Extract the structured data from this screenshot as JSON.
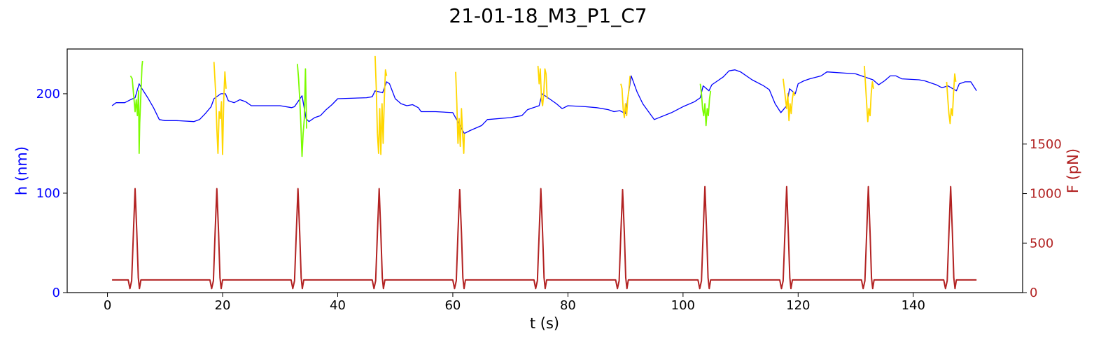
{
  "chart_data": {
    "type": "line",
    "title": "21-01-18_M3_P1_C7",
    "xlabel": "t (s)",
    "ylabel_left": "h (nm)",
    "ylabel_right": "F (pN)",
    "xlim": [
      -7,
      159
    ],
    "ylim_left": [
      0,
      245
    ],
    "ylim_right": [
      0,
      2460
    ],
    "x_ticks": [
      0,
      20,
      40,
      60,
      80,
      100,
      120,
      140
    ],
    "y_left_ticks": [
      0,
      100,
      200
    ],
    "y_right_ticks": [
      0,
      500,
      1000,
      1500
    ],
    "colors": {
      "height": "#0000ff",
      "force": "#b22222",
      "approach_segment": "#7cfc00",
      "retract_segment": "#ffd700",
      "left_axis_text": "#0000ff",
      "right_axis_text": "#b22222"
    },
    "grid": false,
    "series": [
      {
        "axis": "left",
        "color": "#0000ff",
        "points": [
          [
            0.8,
            188
          ],
          [
            1.5,
            191
          ],
          [
            3,
            191
          ],
          [
            4,
            194
          ],
          [
            4.8,
            196
          ],
          [
            5.5,
            210
          ],
          [
            6,
            205
          ],
          [
            7,
            196
          ],
          [
            8,
            186
          ],
          [
            9,
            174
          ],
          [
            10,
            173
          ],
          [
            12,
            173
          ],
          [
            15,
            172
          ],
          [
            16,
            174
          ],
          [
            17,
            180
          ],
          [
            18,
            187
          ],
          [
            18.5,
            195
          ],
          [
            19.7,
            200
          ],
          [
            20.5,
            200
          ],
          [
            21,
            193
          ],
          [
            22,
            191
          ],
          [
            23,
            194
          ],
          [
            24,
            192
          ],
          [
            25,
            188
          ],
          [
            28,
            188
          ],
          [
            30,
            188
          ],
          [
            32,
            186
          ],
          [
            32.5,
            187
          ],
          [
            33.8,
            198
          ],
          [
            34.5,
            175
          ],
          [
            35,
            172
          ],
          [
            36,
            176
          ],
          [
            37,
            178
          ],
          [
            38,
            184
          ],
          [
            39,
            189
          ],
          [
            40,
            195
          ],
          [
            45,
            196
          ],
          [
            46,
            197
          ],
          [
            46.5,
            203
          ],
          [
            47.8,
            201
          ],
          [
            48.5,
            212
          ],
          [
            49,
            210
          ],
          [
            50,
            195
          ],
          [
            51,
            190
          ],
          [
            52,
            188
          ],
          [
            53,
            189
          ],
          [
            54,
            186
          ],
          [
            54.5,
            182
          ],
          [
            57,
            182
          ],
          [
            60,
            181
          ],
          [
            62,
            160
          ],
          [
            63,
            163
          ],
          [
            65,
            168
          ],
          [
            66,
            174
          ],
          [
            70,
            176
          ],
          [
            72,
            178
          ],
          [
            73,
            184
          ],
          [
            74,
            186
          ],
          [
            75,
            188
          ],
          [
            75.5,
            200
          ],
          [
            77,
            194
          ],
          [
            78,
            190
          ],
          [
            79,
            185
          ],
          [
            80,
            188
          ],
          [
            83,
            187
          ],
          [
            85,
            186
          ],
          [
            87,
            184
          ],
          [
            88,
            182
          ],
          [
            89,
            183
          ],
          [
            90,
            180
          ],
          [
            91,
            218
          ],
          [
            92,
            202
          ],
          [
            93,
            190
          ],
          [
            94,
            182
          ],
          [
            95,
            174
          ],
          [
            98,
            181
          ],
          [
            100,
            187
          ],
          [
            102,
            192
          ],
          [
            103,
            196
          ],
          [
            103.5,
            208
          ],
          [
            104.5,
            203
          ],
          [
            105,
            209
          ],
          [
            106,
            213
          ],
          [
            107,
            217
          ],
          [
            108,
            223
          ],
          [
            109,
            224
          ],
          [
            110,
            222
          ],
          [
            112,
            214
          ],
          [
            114,
            208
          ],
          [
            115,
            204
          ],
          [
            116,
            190
          ],
          [
            117,
            181
          ],
          [
            118,
            188
          ],
          [
            118.5,
            205
          ],
          [
            119.5,
            200
          ],
          [
            120,
            210
          ],
          [
            121,
            213
          ],
          [
            122,
            215
          ],
          [
            124,
            218
          ],
          [
            125,
            222
          ],
          [
            130,
            220
          ],
          [
            131,
            218
          ],
          [
            133,
            214
          ],
          [
            134,
            209
          ],
          [
            135,
            213
          ],
          [
            136,
            218
          ],
          [
            137,
            218
          ],
          [
            138,
            215
          ],
          [
            141,
            214
          ],
          [
            142,
            213
          ],
          [
            144,
            209
          ],
          [
            145,
            206
          ],
          [
            146,
            208
          ],
          [
            147.5,
            203
          ],
          [
            148,
            210
          ],
          [
            149,
            212
          ],
          [
            150,
            212
          ],
          [
            151,
            203
          ]
        ]
      },
      {
        "axis": "left",
        "color": "#7cfc00",
        "points": [
          [
            4.0,
            218
          ],
          [
            4.3,
            215
          ],
          [
            4.6,
            195
          ],
          [
            4.8,
            182
          ],
          [
            5.0,
            194
          ],
          [
            5.2,
            178
          ],
          [
            5.4,
            203
          ],
          [
            5.5,
            140
          ],
          [
            5.6,
            170
          ],
          [
            5.8,
            200
          ],
          [
            6.0,
            228
          ],
          [
            6.1,
            233
          ]
        ]
      },
      {
        "axis": "left",
        "color": "#ffd700",
        "points": [
          [
            18.5,
            232
          ],
          [
            18.8,
            200
          ],
          [
            19.0,
            165
          ],
          [
            19.2,
            140
          ],
          [
            19.4,
            182
          ],
          [
            19.6,
            175
          ],
          [
            19.8,
            192
          ],
          [
            20.0,
            139
          ],
          [
            20.2,
            195
          ],
          [
            20.4,
            222
          ],
          [
            20.6,
            205
          ]
        ]
      },
      {
        "axis": "left",
        "color": "#7cfc00",
        "points": [
          [
            33.0,
            230
          ],
          [
            33.2,
            215
          ],
          [
            33.4,
            195
          ],
          [
            33.6,
            170
          ],
          [
            33.8,
            137
          ],
          [
            34.0,
            160
          ],
          [
            34.2,
            175
          ],
          [
            34.4,
            225
          ],
          [
            34.6,
            165
          ]
        ]
      },
      {
        "axis": "left",
        "color": "#ffd700",
        "points": [
          [
            46.5,
            238
          ],
          [
            46.7,
            205
          ],
          [
            46.9,
            160
          ],
          [
            47.1,
            140
          ],
          [
            47.3,
            185
          ],
          [
            47.5,
            139
          ],
          [
            47.7,
            190
          ],
          [
            47.9,
            150
          ],
          [
            48.1,
            195
          ],
          [
            48.3,
            224
          ],
          [
            48.5,
            218
          ]
        ]
      },
      {
        "axis": "left",
        "color": "#ffd700",
        "points": [
          [
            60.5,
            222
          ],
          [
            60.7,
            190
          ],
          [
            60.9,
            150
          ],
          [
            61.1,
            175
          ],
          [
            61.3,
            147
          ],
          [
            61.5,
            185
          ],
          [
            61.7,
            160
          ],
          [
            61.9,
            140
          ],
          [
            62.0,
            160
          ]
        ]
      },
      {
        "axis": "left",
        "color": "#ffd700",
        "points": [
          [
            74.8,
            228
          ],
          [
            75.0,
            210
          ],
          [
            75.2,
            225
          ],
          [
            75.4,
            195
          ],
          [
            75.6,
            188
          ],
          [
            75.8,
            200
          ],
          [
            76.0,
            225
          ],
          [
            76.2,
            220
          ],
          [
            76.4,
            195
          ]
        ]
      },
      {
        "axis": "left",
        "color": "#ffd700",
        "points": [
          [
            89.2,
            210
          ],
          [
            89.4,
            205
          ],
          [
            89.6,
            185
          ],
          [
            89.8,
            176
          ],
          [
            90.0,
            190
          ],
          [
            90.2,
            178
          ],
          [
            90.4,
            195
          ],
          [
            90.6,
            205
          ],
          [
            90.8,
            218
          ]
        ]
      },
      {
        "axis": "left",
        "color": "#7cfc00",
        "points": [
          [
            103.0,
            210
          ],
          [
            103.2,
            200
          ],
          [
            103.4,
            185
          ],
          [
            103.6,
            178
          ],
          [
            103.8,
            190
          ],
          [
            104.0,
            168
          ],
          [
            104.2,
            185
          ],
          [
            104.4,
            178
          ],
          [
            104.6,
            195
          ],
          [
            104.8,
            203
          ]
        ]
      },
      {
        "axis": "left",
        "color": "#ffd700",
        "points": [
          [
            117.4,
            215
          ],
          [
            117.6,
            205
          ],
          [
            117.8,
            195
          ],
          [
            118.0,
            185
          ],
          [
            118.2,
            200
          ],
          [
            118.4,
            173
          ],
          [
            118.6,
            190
          ],
          [
            118.8,
            180
          ],
          [
            119.0,
            195
          ],
          [
            119.2,
            202
          ],
          [
            119.4,
            198
          ]
        ]
      },
      {
        "axis": "left",
        "color": "#ffd700",
        "points": [
          [
            131.5,
            228
          ],
          [
            131.7,
            210
          ],
          [
            131.9,
            190
          ],
          [
            132.1,
            172
          ],
          [
            132.3,
            185
          ],
          [
            132.5,
            178
          ],
          [
            132.7,
            200
          ],
          [
            132.9,
            212
          ],
          [
            133.1,
            205
          ]
        ]
      },
      {
        "axis": "left",
        "color": "#ffd700",
        "points": [
          [
            145.8,
            212
          ],
          [
            146.0,
            195
          ],
          [
            146.2,
            180
          ],
          [
            146.4,
            170
          ],
          [
            146.6,
            185
          ],
          [
            146.8,
            178
          ],
          [
            147.0,
            200
          ],
          [
            147.2,
            220
          ],
          [
            147.4,
            212
          ]
        ]
      },
      {
        "axis": "right",
        "color": "#b22222",
        "baseline": 128,
        "baseline_x_range": [
          0.8,
          151
        ],
        "peaks": [
          {
            "t": 4.8,
            "value": 1050
          },
          {
            "t": 19.0,
            "value": 1050
          },
          {
            "t": 33.1,
            "value": 1050
          },
          {
            "t": 47.2,
            "value": 1050
          },
          {
            "t": 61.2,
            "value": 1040
          },
          {
            "t": 75.3,
            "value": 1050
          },
          {
            "t": 89.5,
            "value": 1040
          },
          {
            "t": 103.8,
            "value": 1070
          },
          {
            "t": 118.0,
            "value": 1070
          },
          {
            "t": 132.2,
            "value": 1070
          },
          {
            "t": 146.5,
            "value": 1070
          }
        ]
      }
    ]
  }
}
